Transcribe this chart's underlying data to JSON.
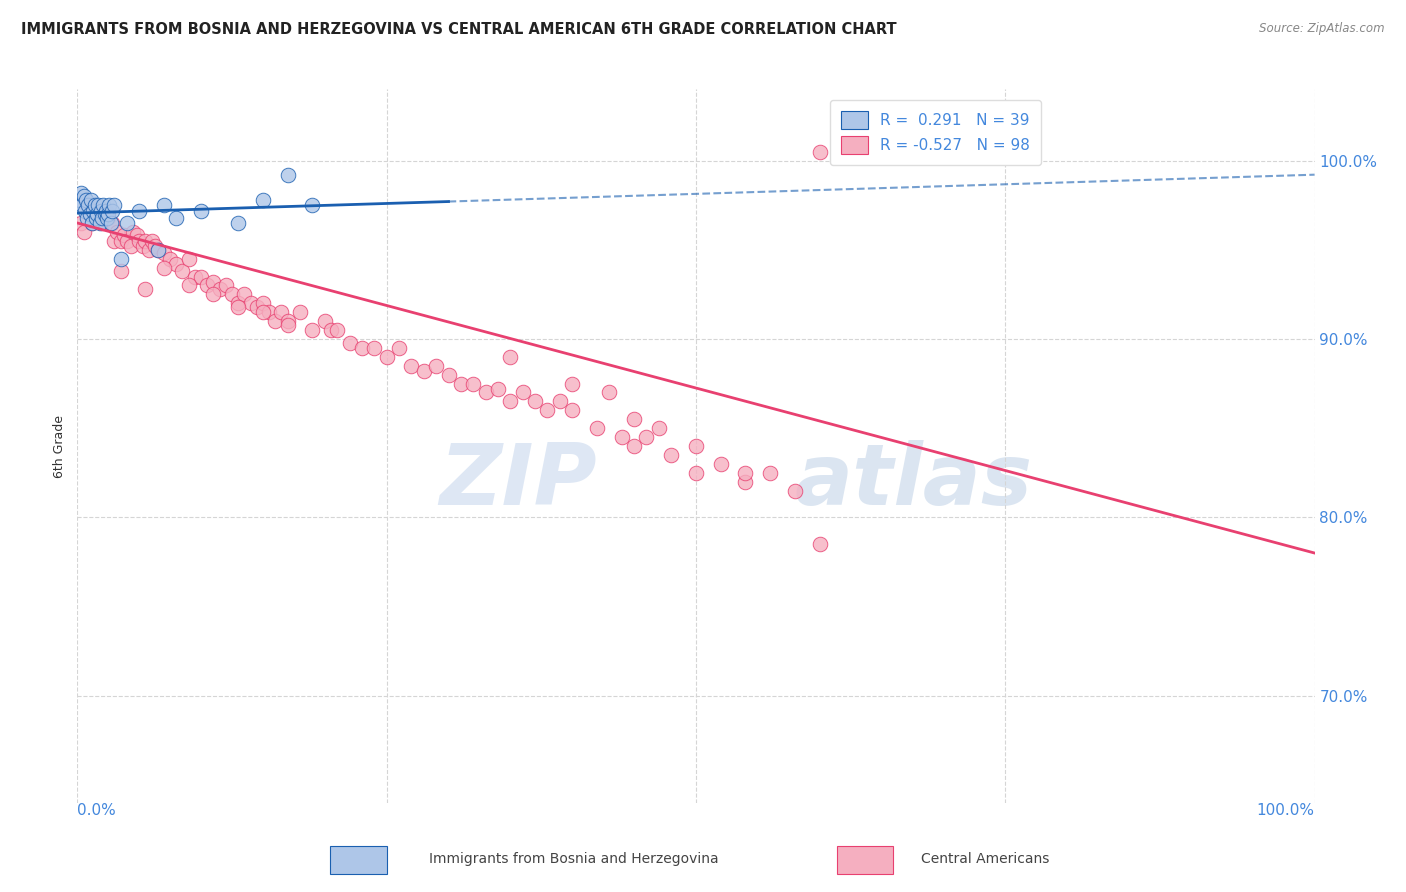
{
  "title": "IMMIGRANTS FROM BOSNIA AND HERZEGOVINA VS CENTRAL AMERICAN 6TH GRADE CORRELATION CHART",
  "source": "Source: ZipAtlas.com",
  "ylabel": "6th Grade",
  "xlim": [
    0.0,
    100.0
  ],
  "ylim": [
    64.0,
    104.0
  ],
  "yticks": [
    70.0,
    80.0,
    90.0,
    100.0
  ],
  "ytick_labels": [
    "70.0%",
    "80.0%",
    "90.0%",
    "100.0%"
  ],
  "color_bosnia": "#aec6e8",
  "color_central": "#f5afc0",
  "color_line_bosnia": "#1a5fb0",
  "color_line_central": "#e84070",
  "watermark_zip": "ZIP",
  "watermark_atlas": "atlas",
  "bosnia_x": [
    0.2,
    0.3,
    0.4,
    0.5,
    0.6,
    0.7,
    0.8,
    0.9,
    1.0,
    1.1,
    1.2,
    1.3,
    1.4,
    1.5,
    1.6,
    1.7,
    1.8,
    1.9,
    2.0,
    2.1,
    2.2,
    2.3,
    2.4,
    2.5,
    2.6,
    2.7,
    2.8,
    3.0,
    3.5,
    4.0,
    5.0,
    6.5,
    7.0,
    8.0,
    10.0,
    13.0,
    15.0,
    17.0,
    19.0
  ],
  "bosnia_y": [
    97.8,
    98.2,
    97.5,
    98.0,
    97.2,
    97.8,
    96.8,
    97.5,
    97.0,
    97.8,
    96.5,
    97.2,
    97.5,
    96.8,
    97.0,
    97.5,
    96.5,
    97.2,
    96.8,
    97.5,
    97.0,
    97.2,
    96.8,
    97.0,
    97.5,
    96.5,
    97.2,
    97.5,
    94.5,
    96.5,
    97.2,
    95.0,
    97.5,
    96.8,
    97.2,
    96.5,
    97.8,
    99.2,
    97.5
  ],
  "central_x": [
    0.3,
    0.5,
    0.8,
    1.0,
    1.2,
    1.5,
    1.8,
    2.0,
    2.3,
    2.5,
    2.8,
    3.0,
    3.2,
    3.5,
    3.8,
    4.0,
    4.3,
    4.5,
    4.8,
    5.0,
    5.3,
    5.5,
    5.8,
    6.0,
    6.3,
    6.5,
    7.0,
    7.5,
    8.0,
    8.5,
    9.0,
    9.5,
    10.0,
    10.5,
    11.0,
    11.5,
    12.0,
    12.5,
    13.0,
    13.5,
    14.0,
    14.5,
    15.0,
    15.5,
    16.0,
    16.5,
    17.0,
    18.0,
    19.0,
    20.0,
    20.5,
    21.0,
    22.0,
    23.0,
    24.0,
    25.0,
    26.0,
    27.0,
    28.0,
    29.0,
    30.0,
    31.0,
    32.0,
    33.0,
    34.0,
    35.0,
    36.0,
    37.0,
    38.0,
    39.0,
    40.0,
    42.0,
    44.0,
    45.0,
    46.0,
    48.0,
    50.0,
    52.0,
    54.0,
    56.0,
    58.0,
    60.0,
    35.0,
    40.0,
    43.0,
    45.0,
    47.0,
    50.0,
    54.0,
    60.0,
    3.5,
    5.5,
    7.0,
    9.0,
    11.0,
    13.0,
    15.0,
    17.0
  ],
  "central_y": [
    96.5,
    96.0,
    97.5,
    97.0,
    96.5,
    97.2,
    96.8,
    96.5,
    97.0,
    96.8,
    96.5,
    95.5,
    96.0,
    95.5,
    95.8,
    95.5,
    95.2,
    96.0,
    95.8,
    95.5,
    95.2,
    95.5,
    95.0,
    95.5,
    95.2,
    95.0,
    94.8,
    94.5,
    94.2,
    93.8,
    94.5,
    93.5,
    93.5,
    93.0,
    93.2,
    92.8,
    93.0,
    92.5,
    92.0,
    92.5,
    92.0,
    91.8,
    92.0,
    91.5,
    91.0,
    91.5,
    91.0,
    91.5,
    90.5,
    91.0,
    90.5,
    90.5,
    89.8,
    89.5,
    89.5,
    89.0,
    89.5,
    88.5,
    88.2,
    88.5,
    88.0,
    87.5,
    87.5,
    87.0,
    87.2,
    86.5,
    87.0,
    86.5,
    86.0,
    86.5,
    86.0,
    85.0,
    84.5,
    84.0,
    84.5,
    83.5,
    82.5,
    83.0,
    82.0,
    82.5,
    81.5,
    78.5,
    89.0,
    87.5,
    87.0,
    85.5,
    85.0,
    84.0,
    82.5,
    100.5,
    93.8,
    92.8,
    94.0,
    93.0,
    92.5,
    91.8,
    91.5,
    90.8
  ],
  "legend_text1": "R =  0.291   N = 39",
  "legend_text2": "R = -0.527   N = 98",
  "bottom_label1": "Immigrants from Bosnia and Herzegovina",
  "bottom_label2": "Central Americans",
  "grid_color": "#d5d5d5",
  "grid_style": "--",
  "title_color": "#222222",
  "source_color": "#888888",
  "ylabel_color": "#333333",
  "tick_label_color": "#4488dd"
}
